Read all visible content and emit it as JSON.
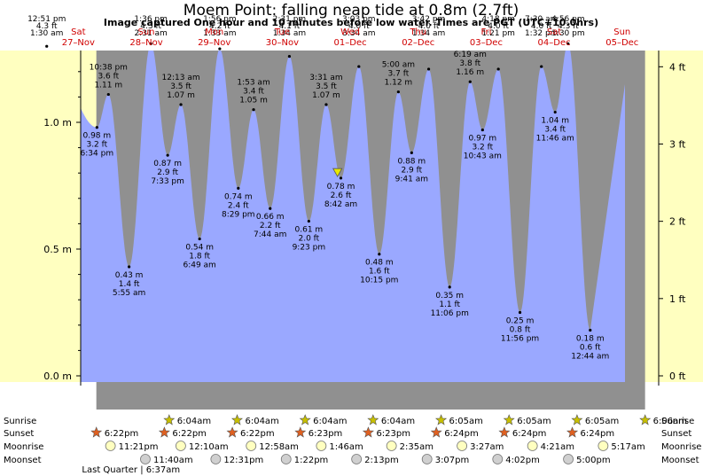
{
  "title": "Moem Point: falling  neap tide at 0.8m (2.7ft)",
  "subtitle": "Image captured One hour and 10 minutes before low water. Times are PGT (UTC+10.0hrs)",
  "chart_data": {
    "type": "area",
    "xlim_hours": [
      0,
      240
    ],
    "ylim_m": [
      -0.05,
      1.28
    ],
    "y_ticks_m": [
      {
        "v": 0.0,
        "label": "0.0 m"
      },
      {
        "v": 0.5,
        "label": "0.5 m"
      },
      {
        "v": 1.0,
        "label": "1.0 m"
      }
    ],
    "y_ticks_ft": [
      {
        "v": 0,
        "label": "0 ft"
      },
      {
        "v": 1,
        "label": "1 ft"
      },
      {
        "v": 2,
        "label": "2 ft"
      },
      {
        "v": 3,
        "label": "3 ft"
      },
      {
        "v": 4,
        "label": "4 ft"
      }
    ],
    "days": [
      {
        "dow": "Sat",
        "date": "27–Nov"
      },
      {
        "dow": "Sun",
        "date": "28–Nov"
      },
      {
        "dow": "Mon",
        "date": "29–Nov"
      },
      {
        "dow": "Tue",
        "date": "30–Nov"
      },
      {
        "dow": "Wed",
        "date": "01–Dec"
      },
      {
        "dow": "Thu",
        "date": "02–Dec"
      },
      {
        "dow": "Fri",
        "date": "03–Dec"
      },
      {
        "dow": "Sat",
        "date": "04–Dec"
      },
      {
        "dow": "Sun",
        "date": "05–Dec"
      }
    ],
    "tides": [
      {
        "h": 0.85,
        "m": 1.3,
        "m_label": "",
        "ft_label": "4.3 ft",
        "time": "12:51 pm"
      },
      {
        "h": 18.57,
        "m": 0.98,
        "m_label": "0.98 m",
        "ft_label": "3.2 ft",
        "time": "6:34 pm"
      },
      {
        "h": 22.63,
        "m": 1.11,
        "m_label": "1.11 m",
        "ft_label": "3.6 ft",
        "time": "10:38 pm"
      },
      {
        "h": 29.92,
        "m": 0.43,
        "m_label": "0.43 m",
        "ft_label": "1.4 ft",
        "time": "5:55 am"
      },
      {
        "h": 37.6,
        "m": 1.31,
        "m_label": "",
        "ft_label": "4.3 ft",
        "time": "1:36 pm"
      },
      {
        "h": 43.55,
        "m": 0.87,
        "m_label": "0.87 m",
        "ft_label": "2.9 ft",
        "time": "7:33 pm"
      },
      {
        "h": 48.22,
        "m": 1.07,
        "m_label": "1.07 m",
        "ft_label": "3.5 ft",
        "time": "12:13 am"
      },
      {
        "h": 54.82,
        "m": 0.54,
        "m_label": "0.54 m",
        "ft_label": "1.8 ft",
        "time": "6:49 am"
      },
      {
        "h": 61.93,
        "m": 1.29,
        "m_label": "",
        "ft_label": "4.2 ft",
        "time": "1:56 pm"
      },
      {
        "h": 68.48,
        "m": 0.74,
        "m_label": "0.74 m",
        "ft_label": "2.4 ft",
        "time": "8:29 pm"
      },
      {
        "h": 73.88,
        "m": 1.05,
        "m_label": "1.05 m",
        "ft_label": "3.4 ft",
        "time": "1:53 am"
      },
      {
        "h": 79.73,
        "m": 0.66,
        "m_label": "0.66 m",
        "ft_label": "2.2 ft",
        "time": "7:44 am"
      },
      {
        "h": 86.52,
        "m": 1.26,
        "m_label": "",
        "ft_label": "4.1 ft",
        "time": "2:31 pm"
      },
      {
        "h": 93.38,
        "m": 0.61,
        "m_label": "0.61 m",
        "ft_label": "2.0 ft",
        "time": "9:23 pm"
      },
      {
        "h": 99.52,
        "m": 1.07,
        "m_label": "1.07 m",
        "ft_label": "3.5 ft",
        "time": "3:31 am"
      },
      {
        "h": 104.7,
        "m": 0.78,
        "m_label": "0.78 m",
        "ft_label": "2.6 ft",
        "time": "8:42 am"
      },
      {
        "h": 111.05,
        "m": 1.22,
        "m_label": "",
        "ft_label": "4.0 ft",
        "time": "3:03 pm"
      },
      {
        "h": 118.25,
        "m": 0.48,
        "m_label": "0.48 m",
        "ft_label": "1.6 ft",
        "time": "10:15 pm"
      },
      {
        "h": 125.0,
        "m": 1.12,
        "m_label": "1.12 m",
        "ft_label": "3.7 ft",
        "time": "5:00 am"
      },
      {
        "h": 129.68,
        "m": 0.88,
        "m_label": "0.88 m",
        "ft_label": "2.9 ft",
        "time": "9:41 am"
      },
      {
        "h": 135.7,
        "m": 1.21,
        "m_label": "",
        "ft_label": "4.0 ft",
        "time": "3:42 pm"
      },
      {
        "h": 143.1,
        "m": 0.35,
        "m_label": "0.35 m",
        "ft_label": "1.1 ft",
        "time": "11:06 pm"
      },
      {
        "h": 150.32,
        "m": 1.16,
        "m_label": "1.16 m",
        "ft_label": "3.8 ft",
        "time": "6:19 am"
      },
      {
        "h": 154.72,
        "m": 0.97,
        "m_label": "0.97 m",
        "ft_label": "3.2 ft",
        "time": "10:43 am"
      },
      {
        "h": 160.3,
        "m": 1.21,
        "m_label": "",
        "ft_label": "4.0 ft",
        "time": "4:18 pm"
      },
      {
        "h": 167.93,
        "m": 0.25,
        "m_label": "0.25 m",
        "ft_label": "0.8 ft",
        "time": "11:56 pm"
      },
      {
        "h": 175.5,
        "m": 1.22,
        "m_label": "",
        "ft_label": "4.0 ft",
        "time": "7:30 am"
      },
      {
        "h": 180.35,
        "m": 1.04,
        "m_label": "1.04 m",
        "ft_label": "3.4 ft",
        "time": "11:46 am"
      },
      {
        "h": 184.93,
        "m": 1.31,
        "m_label": "",
        "ft_label": "4.3 ft",
        "time": "4:56 pm"
      },
      {
        "h": 192.73,
        "m": 0.18,
        "m_label": "0.18 m",
        "ft_label": "0.6 ft",
        "time": "12:44 am"
      }
    ],
    "upper_time_labels": [
      "1:30 am",
      "2:31 am",
      "1:33 am",
      "1:34 am",
      "3:34 am",
      "1:34 am",
      "1:21 pm",
      "1:32 pm",
      "1:30 pm"
    ],
    "current": {
      "h": 103.5,
      "m": 0.8
    }
  },
  "rows": [
    {
      "key": "sunrise",
      "label": "Sunrise",
      "items": [
        {
          "t": "6:04am",
          "h": 44.07
        },
        {
          "t": "6:04am",
          "h": 68.07
        },
        {
          "t": "6:04am",
          "h": 92.07
        },
        {
          "t": "6:04am",
          "h": 116.07
        },
        {
          "t": "6:05am",
          "h": 140.08
        },
        {
          "t": "6:05am",
          "h": 164.08
        },
        {
          "t": "6:05am",
          "h": 188.08
        },
        {
          "t": "6:06am",
          "h": 212.1
        }
      ]
    },
    {
      "key": "sunset",
      "label": "Sunset",
      "items": [
        {
          "t": "6:22pm",
          "h": 18.37
        },
        {
          "t": "6:22pm",
          "h": 42.37
        },
        {
          "t": "6:22pm",
          "h": 66.37
        },
        {
          "t": "6:23pm",
          "h": 90.38
        },
        {
          "t": "6:23pm",
          "h": 114.38
        },
        {
          "t": "6:24pm",
          "h": 138.4
        },
        {
          "t": "6:24pm",
          "h": 162.4
        },
        {
          "t": "6:24pm",
          "h": 186.4
        }
      ]
    },
    {
      "key": "moonrise",
      "label": "Moonrise",
      "items": [
        {
          "t": "11:21pm",
          "h": 23.35
        },
        {
          "t": "12:10am",
          "h": 48.17
        },
        {
          "t": "12:58am",
          "h": 73.0
        },
        {
          "t": "1:46am",
          "h": 97.77
        },
        {
          "t": "2:35am",
          "h": 122.58
        },
        {
          "t": "3:27am",
          "h": 147.45
        },
        {
          "t": "4:21am",
          "h": 172.35
        },
        {
          "t": "5:17am",
          "h": 197.3
        }
      ]
    },
    {
      "key": "moonset",
      "label": "Moonset",
      "items": [
        {
          "t": "11:40am",
          "h": 35.67
        },
        {
          "t": "12:31pm",
          "h": 60.52
        },
        {
          "t": "1:22pm",
          "h": 85.37
        },
        {
          "t": "2:13pm",
          "h": 110.22
        },
        {
          "t": "3:07pm",
          "h": 135.12
        },
        {
          "t": "4:02pm",
          "h": 160.03
        },
        {
          "t": "5:00pm",
          "h": 185.0
        }
      ]
    }
  ],
  "moon_phase": {
    "label": "Last Quarter | 6:37am"
  },
  "colors": {
    "day_bg": "#ffffc0",
    "night_bg": "#909090",
    "water": "#9aa8ff",
    "day_text": "#d00000",
    "sun_marker": "#c8c000",
    "sunset_marker": "#e06020",
    "moonrise_fill": "#ffffc0",
    "moonset_fill": "#d0d0d0",
    "current_marker": "#e8e800"
  }
}
